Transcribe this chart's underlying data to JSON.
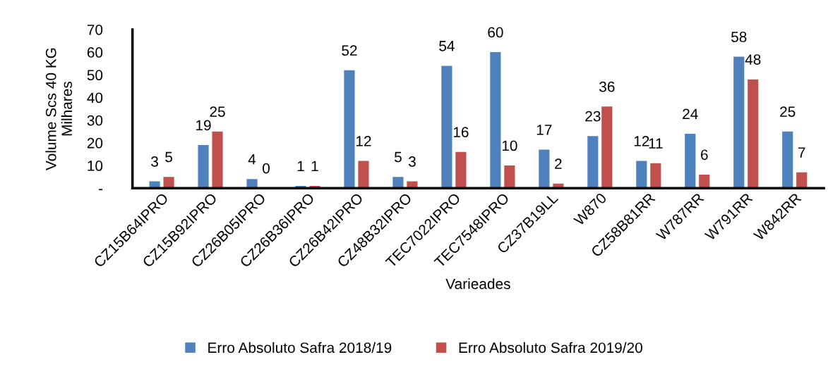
{
  "chart_data": {
    "type": "bar",
    "xlabel": "Varieades",
    "ylabel": "Volume Scs 40 KG\nMilhares",
    "categories": [
      "CZ15B64IPRO",
      "CZ15B92IPRO",
      "CZ26B05IPRO",
      "CZ26B36IPRO",
      "CZ26B42IPRO",
      "CZ48B32IPRO",
      "TEC7022IPRO",
      "TEC7548IPRO",
      "CZ37B19LL",
      "W870",
      "CZ58B81RR",
      "W787RR",
      "W791RR",
      "W842RR"
    ],
    "series": [
      {
        "name": "Erro Absoluto Safra 2018/19",
        "color": "#4f81bd",
        "values": [
          3,
          19,
          4,
          1,
          52,
          5,
          54,
          60,
          17,
          23,
          12,
          24,
          58,
          25
        ]
      },
      {
        "name": "Erro Absoluto Safra 2019/20",
        "color": "#c0504d",
        "values": [
          5,
          25,
          0,
          1,
          12,
          3,
          16,
          10,
          2,
          36,
          11,
          6,
          48,
          7
        ]
      }
    ],
    "ylim": [
      0,
      70
    ],
    "yticks": [
      {
        "value": 0,
        "label": "-"
      },
      10,
      20,
      30,
      40,
      50,
      60,
      70
    ],
    "data_labels": true,
    "grid": false,
    "legend": "bottom"
  }
}
